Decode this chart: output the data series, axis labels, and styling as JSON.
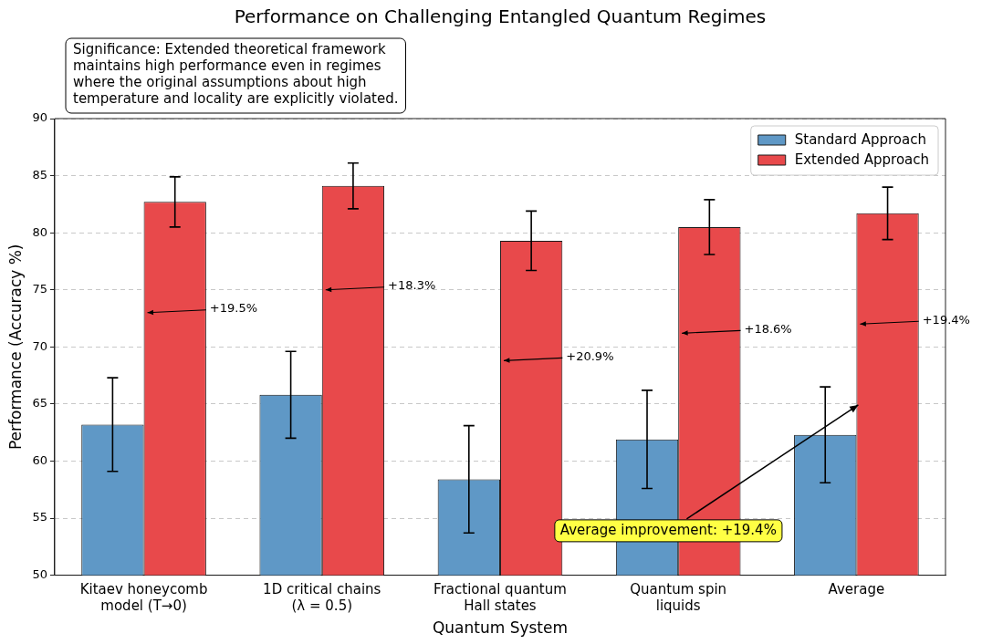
{
  "chart_data": {
    "type": "bar",
    "title": "Performance on Challenging Entangled Quantum Regimes",
    "xlabel": "Quantum System",
    "ylabel": "Performance (Accuracy %)",
    "categories": [
      "Kitaev honeycomb\nmodel (T→0)",
      "1D critical chains\n(λ = 0.5)",
      "Fractional quantum\nHall states",
      "Quantum spin\nliquids",
      "Average"
    ],
    "series": [
      {
        "name": "Standard Approach",
        "color": "#5f98c6",
        "values": [
          63.2,
          65.8,
          58.4,
          61.9,
          62.3
        ],
        "errors": [
          [
            59.1,
            67.3
          ],
          [
            62.0,
            69.6
          ],
          [
            53.7,
            63.1
          ],
          [
            57.6,
            66.2
          ],
          [
            58.1,
            66.5
          ]
        ]
      },
      {
        "name": "Extended Approach",
        "color": "#e8494b",
        "values": [
          82.7,
          84.1,
          79.3,
          80.5,
          81.7
        ],
        "errors": [
          [
            80.5,
            84.9
          ],
          [
            82.1,
            86.1
          ],
          [
            76.7,
            81.9
          ],
          [
            78.1,
            82.9
          ],
          [
            79.4,
            84.0
          ]
        ]
      }
    ],
    "ylim": [
      50,
      90
    ],
    "yticks": [
      50,
      55,
      60,
      65,
      70,
      75,
      80,
      85,
      90
    ],
    "grid": "y",
    "legend": "top right",
    "annotations": [
      "Significance: Extended theoretical framework\nmaintains high performance even in regimes\nwhere the original assumptions about high\ntemperature and locality are explicitly violated.",
      {
        "text": "+19.5%",
        "x": "Kitaev honeycomb\nmodel (T→0)",
        "y": 73.0
      },
      {
        "text": "+18.3%",
        "x": "1D critical chains\n(λ = 0.5)",
        "y": 75.0
      },
      {
        "text": "+20.9%",
        "x": "Fractional quantum\nHall states",
        "y": 68.8
      },
      {
        "text": "+18.6%",
        "x": "Quantum spin\nliquids",
        "y": 71.2
      },
      {
        "text": "+19.4%",
        "x": "Average",
        "y": 72.0
      },
      {
        "text": "Average improvement: +19.4%",
        "x": "Average",
        "y": 65
      }
    ]
  }
}
